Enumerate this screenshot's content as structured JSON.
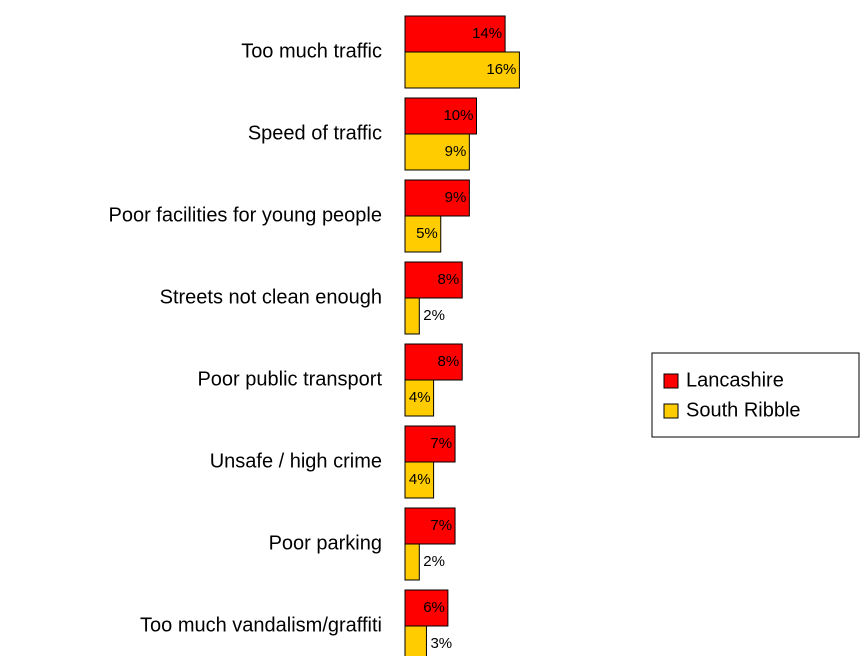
{
  "chart_data": {
    "type": "bar",
    "orientation": "horizontal",
    "legend": "right",
    "categories": [
      "Too much traffic",
      "Speed of traffic",
      "Poor facilities for young people",
      "Streets not clean enough",
      "Poor public transport",
      "Unsafe / high crime",
      "Poor parking",
      "Too much vandalism/graffiti"
    ],
    "series": [
      {
        "name": "Lancashire",
        "color": "#ff0000",
        "values": [
          14,
          10,
          9,
          8,
          8,
          7,
          7,
          6
        ],
        "value_labels": [
          "14%",
          "10%",
          "9%",
          "8%",
          "8%",
          "7%",
          "7%",
          "6%"
        ]
      },
      {
        "name": "South Ribble",
        "color": "#ffcc00",
        "values": [
          16,
          9,
          5,
          2,
          4,
          4,
          2,
          3
        ],
        "value_labels": [
          "16%",
          "9%",
          "5%",
          "2%",
          "4%",
          "4%",
          "2%",
          "3%"
        ]
      }
    ]
  }
}
